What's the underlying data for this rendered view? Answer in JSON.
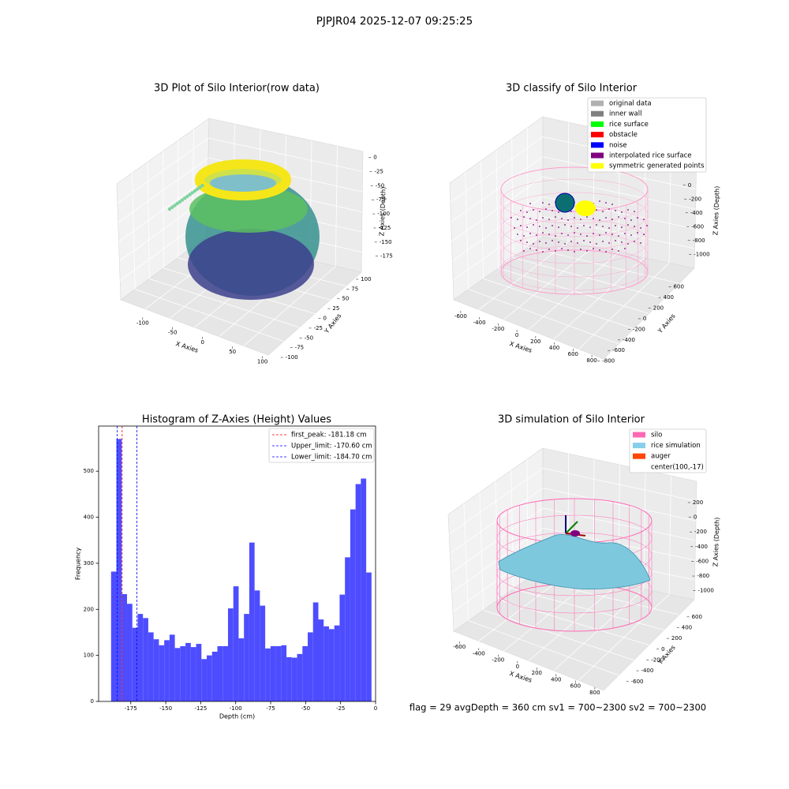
{
  "title": "PJPJR04 2025-12-07 09:25:25",
  "footer": "flag = 29  avgDepth = 360 cm  sv1 = 700~2300  sv2 = 700~2300",
  "chart_data": [
    {
      "type": "scatter3d",
      "title": "3D Plot of Silo Interior(row data)",
      "xlabel": "X Axies",
      "ylabel": "Y Axies",
      "zlabel": "Z Axies (Depth)",
      "xlim": [
        -130,
        115
      ],
      "xticks": [
        -100,
        -50,
        0,
        50,
        100
      ],
      "ylim": [
        -110,
        110
      ],
      "yticks": [
        -100,
        -75,
        -50,
        -25,
        0,
        25,
        50,
        75,
        100
      ],
      "zlim": [
        -195,
        5
      ],
      "zticks": [
        0,
        -25,
        -50,
        -75,
        -100,
        -125,
        -150,
        -175
      ]
    },
    {
      "type": "scatter3d",
      "title": "3D classify of Silo Interior",
      "xlabel": "X Axies",
      "ylabel": "Y Axies",
      "zlabel": "Z Axies (Depth)",
      "xlim": [
        -700,
        850
      ],
      "xticks": [
        -600,
        -400,
        -200,
        0,
        200,
        400,
        600,
        800
      ],
      "ylim": [
        -850,
        700
      ],
      "yticks": [
        -800,
        -600,
        -400,
        -200,
        0,
        200,
        400,
        600
      ],
      "zlim": [
        -1100,
        100
      ],
      "zticks": [
        0,
        -200,
        -400,
        -600,
        -800,
        -1000
      ],
      "legend": [
        {
          "name": "original data",
          "color": "#b0b0b0"
        },
        {
          "name": "inner wall",
          "color": "#808080"
        },
        {
          "name": "rice surface",
          "color": "#00ff00"
        },
        {
          "name": "obstacle",
          "color": "#ff0000"
        },
        {
          "name": "noise",
          "color": "#0000ff"
        },
        {
          "name": "interpolated rice surface",
          "color": "#800080"
        },
        {
          "name": "symmetric generated points",
          "color": "#ffff00"
        }
      ]
    },
    {
      "type": "histogram",
      "title": "Histogram of Z-Axies (Height) Values",
      "xlabel": "Depth (cm)",
      "ylabel": "Frequency",
      "color": "#4d4dff",
      "bins": [
        -189.1,
        -185.3,
        -181.5,
        -177.7,
        -173.9,
        -170.1,
        -166.3,
        -162.5,
        -158.7,
        -154.9,
        -151.1,
        -147.3,
        -143.5,
        -139.7,
        -135.9,
        -132.1,
        -128.3,
        -124.5,
        -120.7,
        -116.9,
        -113.1,
        -109.3,
        -105.5,
        -101.7,
        -97.9,
        -94.1,
        -90.3,
        -86.5,
        -82.7,
        -78.9,
        -75.1,
        -71.3,
        -67.5,
        -63.7,
        -59.9,
        -56.1,
        -52.3,
        -48.5,
        -44.7,
        -40.9,
        -37.1,
        -33.3,
        -29.5,
        -25.7,
        -21.9,
        -18.1,
        -14.3,
        -10.5,
        -6.7,
        -2.9
      ],
      "counts": [
        282,
        570,
        233,
        212,
        160,
        190,
        181,
        150,
        135,
        122,
        133,
        145,
        116,
        120,
        127,
        118,
        125,
        92,
        100,
        108,
        120,
        120,
        202,
        250,
        137,
        190,
        345,
        241,
        208,
        115,
        120,
        120,
        122,
        96,
        95,
        103,
        120,
        150,
        215,
        178,
        163,
        157,
        165,
        232,
        313,
        417,
        472,
        484,
        280
      ],
      "xlim": [
        -198,
        0
      ],
      "xticks": [
        -175,
        -150,
        -125,
        -100,
        -75,
        -50,
        -25,
        0
      ],
      "ylim": [
        0,
        598
      ],
      "yticks": [
        0,
        100,
        200,
        300,
        400,
        500
      ],
      "vlines": [
        {
          "label": "first_peak: -181.18 cm",
          "value": -181.18,
          "color": "#ff0000"
        },
        {
          "label": "Upper_limit: -170.60 cm",
          "value": -170.6,
          "color": "#0000ff"
        },
        {
          "label": "Lower_limit: -184.70 cm",
          "value": -184.7,
          "color": "#0000ff"
        }
      ]
    },
    {
      "type": "surface3d",
      "title": "3D simulation of Silo Interior",
      "xlabel": "X Axies",
      "ylabel": "Y Axies",
      "zlabel": "Z Axies (Depth)",
      "xlim": [
        -700,
        850
      ],
      "xticks": [
        -600,
        -400,
        -200,
        0,
        200,
        400,
        600,
        800
      ],
      "ylim": [
        -750,
        700
      ],
      "yticks": [
        -600,
        -400,
        -200,
        0,
        200,
        400,
        600
      ],
      "zlim": [
        -1100,
        350
      ],
      "zticks": [
        200,
        0,
        -200,
        -400,
        -600,
        -800,
        -1000
      ],
      "legend": [
        {
          "name": "silo",
          "color": "#ff69b4"
        },
        {
          "name": "rice simulation",
          "color": "#87ceeb"
        },
        {
          "name": "auger",
          "color": "#ff4500"
        },
        {
          "name": "center(100,-17)"
        }
      ]
    }
  ]
}
